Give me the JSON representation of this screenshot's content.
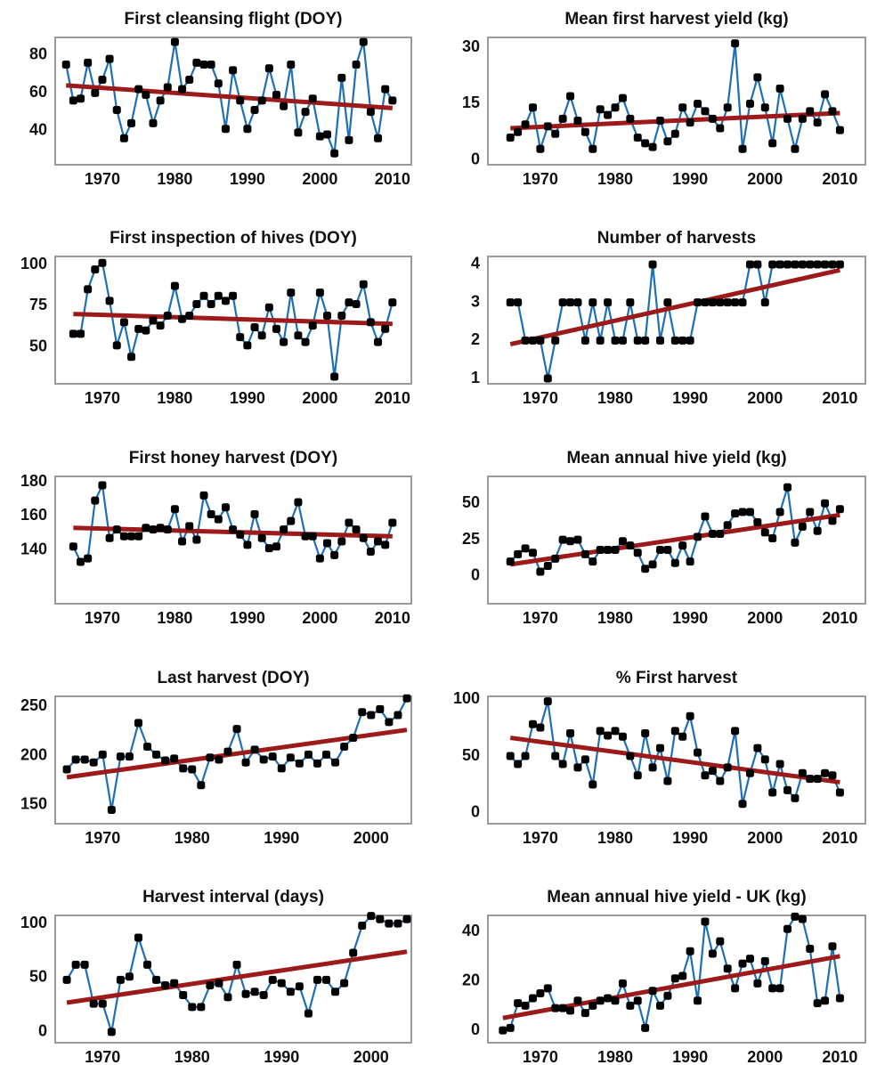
{
  "chart_data": [
    {
      "type": "line",
      "title": "First cleansing flight (DOY)",
      "x": [
        1965,
        1966,
        1967,
        1968,
        1969,
        1970,
        1971,
        1972,
        1973,
        1974,
        1975,
        1976,
        1977,
        1978,
        1979,
        1980,
        1981,
        1982,
        1983,
        1984,
        1985,
        1986,
        1987,
        1988,
        1989,
        1990,
        1991,
        1992,
        1993,
        1994,
        1995,
        1996,
        1997,
        1998,
        1999,
        2000,
        2001,
        2002,
        2003,
        2004,
        2005,
        2006,
        2007,
        2008,
        2009,
        2010
      ],
      "series": [
        {
          "color": "#1f6fb5",
          "values": [
            75,
            56,
            57,
            76,
            60,
            67,
            78,
            51,
            36,
            44,
            62,
            59,
            44,
            56,
            63,
            87,
            62,
            67,
            76,
            75,
            75,
            65,
            41,
            72,
            56,
            41,
            51,
            56,
            73,
            59,
            53,
            75,
            39,
            50,
            57,
            37,
            38,
            28,
            68,
            35,
            75,
            87,
            50,
            36,
            62,
            56
          ]
        }
      ],
      "trend": {
        "color": "#9c1a1a",
        "x": [
          1965,
          2010
        ],
        "values": [
          64,
          52
        ]
      },
      "xlim": [
        1963.5,
        2012.6
      ],
      "xticks": [
        1970,
        1980,
        1990,
        2000,
        2010
      ],
      "ylim": [
        22,
        89.4
      ],
      "yticks": [
        40,
        60,
        80
      ]
    },
    {
      "type": "line",
      "title": "Mean first harvest yield (kg)",
      "x": [
        1966,
        1967,
        1968,
        1969,
        1970,
        1971,
        1972,
        1973,
        1974,
        1975,
        1976,
        1977,
        1978,
        1979,
        1980,
        1981,
        1982,
        1983,
        1984,
        1985,
        1986,
        1987,
        1988,
        1989,
        1990,
        1991,
        1992,
        1993,
        1994,
        1995,
        1996,
        1997,
        1998,
        1999,
        2000,
        2001,
        2002,
        2003,
        2004,
        2005,
        2006,
        2007,
        2008,
        2009,
        2010
      ],
      "series": [
        {
          "color": "#1f6fb5",
          "values": [
            6,
            7.5,
            9.5,
            14,
            3,
            9,
            7,
            11,
            17,
            10.5,
            7.5,
            3,
            13.5,
            12,
            14,
            16.5,
            11,
            6,
            4.5,
            3.5,
            10.5,
            5,
            7,
            14,
            10,
            15,
            13,
            11,
            8.5,
            14,
            31,
            3,
            15,
            22,
            14,
            4.5,
            19,
            11,
            3,
            11,
            13,
            10,
            17.5,
            13,
            8
          ]
        }
      ],
      "trend": {
        "color": "#9c1a1a",
        "x": [
          1966,
          2010
        ],
        "values": [
          8.5,
          12.5
        ]
      },
      "xlim": [
        1963,
        2013.4
      ],
      "xticks": [
        1970,
        1980,
        1990,
        2000,
        2010
      ],
      "ylim": [
        -1.2,
        32.6
      ],
      "yticks": [
        0,
        15,
        30
      ]
    },
    {
      "type": "line",
      "title": "First inspection of hives (DOY)",
      "x": [
        1966,
        1967,
        1968,
        1969,
        1970,
        1971,
        1972,
        1973,
        1974,
        1975,
        1976,
        1977,
        1978,
        1979,
        1980,
        1981,
        1982,
        1983,
        1984,
        1985,
        1986,
        1987,
        1988,
        1989,
        1990,
        1991,
        1992,
        1993,
        1994,
        1995,
        1996,
        1997,
        1998,
        1999,
        2000,
        2001,
        2002,
        2003,
        2004,
        2005,
        2006,
        2007,
        2008,
        2009,
        2010
      ],
      "series": [
        {
          "color": "#1f6fb5",
          "values": [
            58,
            58,
            85,
            97,
            101,
            78,
            51,
            65,
            44,
            61,
            60,
            66,
            63,
            69,
            87,
            67,
            69,
            76,
            81,
            76,
            81,
            78,
            81,
            56,
            51,
            62,
            57,
            74,
            61,
            53,
            83,
            57,
            53,
            63,
            83,
            69,
            32,
            69,
            77,
            76,
            88,
            65,
            53,
            61,
            77
          ]
        }
      ],
      "trend": {
        "color": "#9c1a1a",
        "x": [
          1966,
          2010
        ],
        "values": [
          70,
          64
        ]
      },
      "xlim": [
        1963.5,
        2012.6
      ],
      "xticks": [
        1970,
        1980,
        1990,
        2000,
        2010
      ],
      "ylim": [
        27.7,
        104.9
      ],
      "yticks": [
        50,
        75,
        100
      ]
    },
    {
      "type": "line",
      "title": "Number of harvests",
      "x": [
        1966,
        1967,
        1968,
        1969,
        1970,
        1971,
        1972,
        1973,
        1974,
        1975,
        1976,
        1977,
        1978,
        1979,
        1980,
        1981,
        1982,
        1983,
        1984,
        1985,
        1986,
        1987,
        1988,
        1989,
        1990,
        1991,
        1992,
        1993,
        1994,
        1995,
        1996,
        1997,
        1998,
        1999,
        2000,
        2001,
        2002,
        2003,
        2004,
        2005,
        2006,
        2007,
        2008,
        2009,
        2010
      ],
      "series": [
        {
          "color": "#1f6fb5",
          "values": [
            3,
            3,
            2,
            2,
            2,
            1,
            2,
            3,
            3,
            3,
            2,
            3,
            2,
            3,
            2,
            2,
            3,
            2,
            2,
            4,
            2,
            3,
            2,
            2,
            2,
            3,
            3,
            3,
            3,
            3,
            3,
            3,
            4,
            4,
            3,
            4,
            4,
            4,
            4,
            4,
            4,
            4,
            4,
            4,
            4
          ]
        }
      ],
      "trend": {
        "color": "#9c1a1a",
        "x": [
          1966,
          2010
        ],
        "values": [
          1.9,
          3.85
        ]
      },
      "xlim": [
        1963,
        2013.4
      ],
      "xticks": [
        1970,
        1980,
        1990,
        2000,
        2010
      ],
      "ylim": [
        0.86,
        4.21
      ],
      "yticks": [
        1,
        2,
        3,
        4
      ]
    },
    {
      "type": "line",
      "title": "First honey harvest (DOY)",
      "x": [
        1966,
        1967,
        1968,
        1969,
        1970,
        1971,
        1972,
        1973,
        1974,
        1975,
        1976,
        1977,
        1978,
        1979,
        1980,
        1981,
        1982,
        1983,
        1984,
        1985,
        1986,
        1987,
        1988,
        1989,
        1990,
        1991,
        1992,
        1993,
        1994,
        1995,
        1996,
        1997,
        1998,
        1999,
        2000,
        2001,
        2002,
        2003,
        2004,
        2005,
        2006,
        2007,
        2008,
        2009,
        2010
      ],
      "series": [
        {
          "color": "#1f6fb5",
          "values": [
            142,
            133,
            135,
            169,
            178,
            147,
            152,
            148,
            148,
            148,
            153,
            152,
            153,
            152,
            164,
            145,
            154,
            146,
            172,
            161,
            158,
            165,
            152,
            149,
            143,
            161,
            147,
            141,
            142,
            152,
            157,
            168,
            148,
            148,
            135,
            144,
            137,
            145,
            156,
            152,
            147,
            139,
            145,
            143,
            156
          ]
        }
      ],
      "trend": {
        "color": "#9c1a1a",
        "x": [
          1966,
          2010
        ],
        "values": [
          153,
          148
        ]
      },
      "xlim": [
        1963.5,
        2012.6
      ],
      "xticks": [
        1970,
        1980,
        1990,
        2000,
        2010
      ],
      "ylim": [
        108.4,
        183.2
      ],
      "yticks": [
        140,
        160,
        180
      ]
    },
    {
      "type": "line",
      "title": "Mean annual hive yield (kg)",
      "x": [
        1966,
        1967,
        1968,
        1969,
        1970,
        1971,
        1972,
        1973,
        1974,
        1975,
        1976,
        1977,
        1978,
        1979,
        1980,
        1981,
        1982,
        1983,
        1984,
        1985,
        1986,
        1987,
        1988,
        1989,
        1990,
        1991,
        1992,
        1993,
        1994,
        1995,
        1996,
        1997,
        1998,
        1999,
        2000,
        2001,
        2002,
        2003,
        2004,
        2005,
        2006,
        2007,
        2008,
        2009,
        2010
      ],
      "series": [
        {
          "color": "#1f6fb5",
          "values": [
            10,
            15,
            19,
            16,
            3,
            7,
            12,
            25,
            24,
            25,
            15,
            10,
            18,
            18,
            18,
            24,
            21,
            16,
            5,
            8,
            18,
            18,
            9,
            21,
            10,
            27,
            41,
            29,
            29,
            35,
            43,
            44,
            44,
            37,
            30,
            26,
            44,
            61,
            23,
            34,
            44,
            31,
            50,
            38,
            46
          ]
        }
      ],
      "trend": {
        "color": "#9c1a1a",
        "x": [
          1966,
          2010
        ],
        "values": [
          8,
          42
        ]
      },
      "xlim": [
        1963,
        2013.4
      ],
      "xticks": [
        1970,
        1980,
        1990,
        2000,
        2010
      ],
      "ylim": [
        -19,
        68.5
      ],
      "yticks": [
        0,
        25,
        50
      ]
    },
    {
      "type": "line",
      "title": "Last harvest (DOY)",
      "x": [
        1966,
        1967,
        1968,
        1969,
        1970,
        1971,
        1972,
        1973,
        1974,
        1975,
        1976,
        1977,
        1978,
        1979,
        1980,
        1981,
        1982,
        1983,
        1984,
        1985,
        1986,
        1987,
        1988,
        1989,
        1990,
        1991,
        1992,
        1993,
        1994,
        1995,
        1996,
        1997,
        1998,
        1999,
        2000,
        2001,
        2002,
        2003,
        2004
      ],
      "series": [
        {
          "color": "#1f6fb5",
          "values": [
            186,
            196,
            196,
            193,
            201,
            145,
            199,
            199,
            233,
            209,
            201,
            195,
            197,
            187,
            186,
            170,
            198,
            196,
            204,
            227,
            193,
            206,
            196,
            199,
            187,
            198,
            192,
            201,
            192,
            201,
            193,
            209,
            218,
            244,
            241,
            247,
            234,
            241,
            258
          ]
        }
      ],
      "trend": {
        "color": "#9c1a1a",
        "x": [
          1966,
          2004
        ],
        "values": [
          178,
          226
        ]
      },
      "xlim": [
        1964.7,
        2004.5
      ],
      "xticks": [
        1970,
        1980,
        1990,
        2000
      ],
      "ylim": [
        131,
        260
      ],
      "yticks": [
        150,
        200,
        250
      ]
    },
    {
      "type": "line",
      "title": "% First harvest",
      "x": [
        1966,
        1967,
        1968,
        1969,
        1970,
        1971,
        1972,
        1973,
        1974,
        1975,
        1976,
        1977,
        1978,
        1979,
        1980,
        1981,
        1982,
        1983,
        1984,
        1985,
        1986,
        1987,
        1988,
        1989,
        1990,
        1991,
        1992,
        1993,
        1994,
        1995,
        1996,
        1997,
        1998,
        1999,
        2000,
        2001,
        2002,
        2003,
        2004,
        2005,
        2006,
        2007,
        2008,
        2009,
        2010
      ],
      "series": [
        {
          "color": "#1f6fb5",
          "values": [
            50,
            43,
            50,
            78,
            75,
            98,
            50,
            43,
            70,
            40,
            47,
            25,
            72,
            68,
            72,
            67,
            50,
            33,
            70,
            40,
            57,
            28,
            72,
            67,
            85,
            53,
            33,
            37,
            28,
            40,
            72,
            8,
            35,
            57,
            47,
            18,
            43,
            20,
            13,
            35,
            30,
            30,
            35,
            33,
            18
          ]
        }
      ],
      "trend": {
        "color": "#9c1a1a",
        "x": [
          1966,
          2010
        ],
        "values": [
          66,
          27
        ]
      },
      "xlim": [
        1963,
        2013.4
      ],
      "xticks": [
        1970,
        1980,
        1990,
        2000,
        2010
      ],
      "ylim": [
        -9.4,
        102.4
      ],
      "yticks": [
        0,
        50,
        100
      ]
    },
    {
      "type": "line",
      "title": "Harvest interval (days)",
      "x": [
        1966,
        1967,
        1968,
        1969,
        1970,
        1971,
        1972,
        1973,
        1974,
        1975,
        1976,
        1977,
        1978,
        1979,
        1980,
        1981,
        1982,
        1983,
        1984,
        1985,
        1986,
        1987,
        1988,
        1989,
        1990,
        1991,
        1992,
        1993,
        1994,
        1995,
        1996,
        1997,
        1998,
        1999,
        2000,
        2001,
        2002,
        2003,
        2004
      ],
      "series": [
        {
          "color": "#1f6fb5",
          "values": [
            48,
            62,
            62,
            26,
            26,
            0,
            48,
            51,
            87,
            62,
            48,
            43,
            45,
            34,
            23,
            23,
            43,
            45,
            32,
            62,
            35,
            37,
            34,
            48,
            45,
            37,
            42,
            17,
            48,
            48,
            37,
            45,
            73,
            98,
            107,
            104,
            100,
            100,
            104
          ]
        }
      ],
      "trend": {
        "color": "#9c1a1a",
        "x": [
          1966,
          2004
        ],
        "values": [
          27,
          74
        ]
      },
      "xlim": [
        1964.7,
        2004.5
      ],
      "xticks": [
        1970,
        1980,
        1990,
        2000
      ],
      "ylim": [
        -10,
        107.5
      ],
      "yticks": [
        0,
        50,
        100
      ]
    },
    {
      "type": "line",
      "title": "Mean annual hive yield - UK (kg)",
      "x": [
        1965,
        1966,
        1967,
        1968,
        1969,
        1970,
        1971,
        1972,
        1973,
        1974,
        1975,
        1976,
        1977,
        1978,
        1979,
        1980,
        1981,
        1982,
        1983,
        1984,
        1985,
        1986,
        1987,
        1988,
        1989,
        1990,
        1991,
        1992,
        1993,
        1994,
        1995,
        1996,
        1997,
        1998,
        1999,
        2000,
        2001,
        2002,
        2003,
        2004,
        2005,
        2006,
        2007,
        2008,
        2009,
        2010
      ],
      "series": [
        {
          "color": "#1f6fb5",
          "values": [
            0,
            1,
            11,
            10,
            13,
            15,
            17,
            9,
            9,
            8,
            12,
            7,
            10,
            12,
            13,
            12,
            19,
            10,
            12,
            1,
            16,
            10,
            14,
            21,
            22,
            32,
            12,
            44,
            31,
            36,
            25,
            17,
            27,
            29,
            19,
            28,
            17,
            17,
            41,
            46,
            45,
            33,
            11,
            12,
            34,
            13
          ]
        }
      ],
      "trend": {
        "color": "#9c1a1a",
        "x": [
          1965,
          2010
        ],
        "values": [
          5,
          30
        ]
      },
      "xlim": [
        1963,
        2013.4
      ],
      "xticks": [
        1970,
        1980,
        1990,
        2000,
        2010
      ],
      "ylim": [
        -5,
        46.5
      ],
      "yticks": [
        0,
        20,
        40
      ]
    }
  ]
}
